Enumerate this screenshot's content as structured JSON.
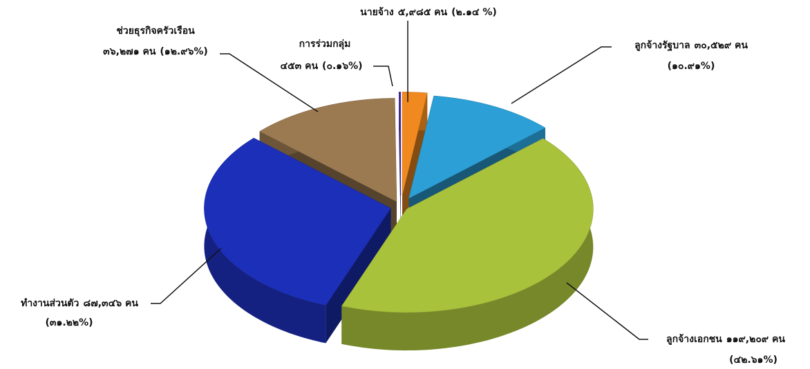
{
  "chart_data": {
    "type": "pie3d",
    "categories": [
      "นายจ้าง",
      "ลูกจ้างรัฐบาล",
      "ลูกจ้างเอกชน",
      "ทำงานส่วนตัว",
      "ช่วยธุรกิจครัวเรือน",
      "การร่วมกลุ่ม"
    ],
    "values": [
      2.14,
      10.91,
      42.61,
      31.22,
      12.96,
      0.16
    ],
    "value_labels": [
      "(๒.๑๔ %)",
      "(๑๐.๙๑%)",
      "(๔๒.๖๑%)",
      "(๓๑.๒๒%)",
      "(๑๒.๙๖%)",
      "(๐.๑๖%)"
    ],
    "counts": [
      5985,
      30529,
      119209,
      87346,
      36271,
      453
    ],
    "count_labels": [
      "๕,๙๘๕ คน",
      "๓๐,๕๒๙ คน",
      "๑๑๙,๒๐๙ คน",
      "๘๗,๓๔๖ คน",
      "๓๖,๒๗๑ คน",
      "๔๕๓ คน"
    ],
    "colors": [
      "#f08a20",
      "#2b9fd6",
      "#a9c23c",
      "#1c2fb8",
      "#9b7a52",
      "#4a2aa0"
    ]
  }
}
